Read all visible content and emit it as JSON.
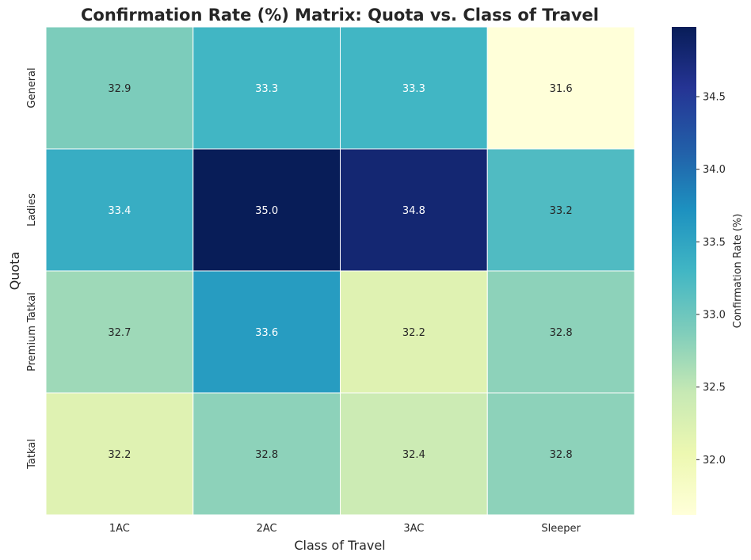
{
  "chart_data": {
    "type": "heatmap",
    "title": "Confirmation Rate (%) Matrix: Quota vs. Class of Travel",
    "xlabel": "Class of Travel",
    "ylabel": "Quota",
    "x_categories": [
      "1AC",
      "2AC",
      "3AC",
      "Sleeper"
    ],
    "y_categories": [
      "General",
      "Ladies",
      "Premium Tatkal",
      "Tatkal"
    ],
    "values": [
      [
        32.9,
        33.3,
        33.3,
        31.6
      ],
      [
        33.4,
        35.0,
        34.8,
        33.2
      ],
      [
        32.7,
        33.6,
        32.2,
        32.8
      ],
      [
        32.2,
        32.8,
        32.4,
        32.8
      ]
    ],
    "value_labels": [
      [
        "32.9",
        "33.3",
        "33.3",
        "31.6"
      ],
      [
        "33.4",
        "35.0",
        "34.8",
        "33.2"
      ],
      [
        "32.7",
        "33.6",
        "32.2",
        "32.8"
      ],
      [
        "32.2",
        "32.8",
        "32.4",
        "32.8"
      ]
    ],
    "colorscale": "YlGnBu",
    "colorbar": {
      "label": "Confirmation Rate (%)",
      "range": [
        31.62,
        34.98
      ],
      "ticks": [
        32.0,
        32.5,
        33.0,
        33.5,
        34.0,
        34.5
      ],
      "tick_labels": [
        "32.0",
        "32.5",
        "33.0",
        "33.5",
        "34.0",
        "34.5"
      ]
    },
    "grid": false,
    "legend": "colorbar-right"
  }
}
